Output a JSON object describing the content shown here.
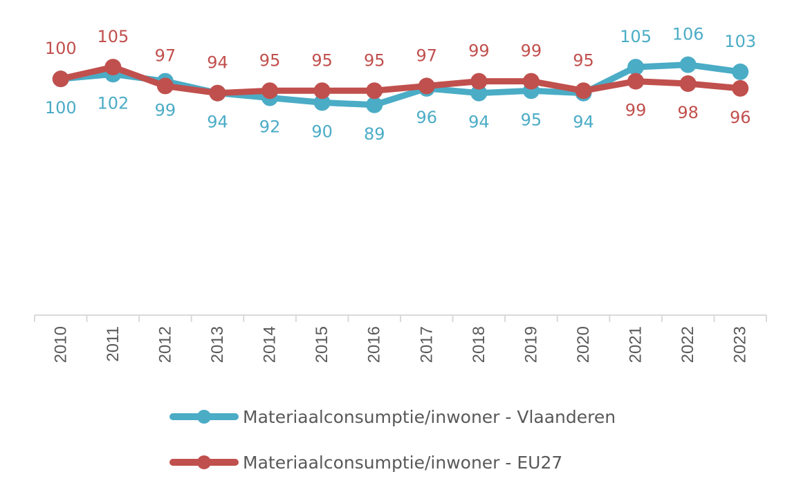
{
  "chart_data": {
    "type": "line",
    "title": "",
    "xlabel": "",
    "ylabel": "",
    "ylim": [
      0,
      110
    ],
    "grid": false,
    "legend_position": "bottom",
    "categories": [
      "2010",
      "2011",
      "2012",
      "2013",
      "2014",
      "2015",
      "2016",
      "2017",
      "2018",
      "2019",
      "2020",
      "2021",
      "2022",
      "2023"
    ],
    "series": [
      {
        "name": "Materiaalconsumptie/inwoner - Vlaanderen",
        "color": "#4BACC6",
        "label_position": "below-until-2020-then-above",
        "values": [
          100,
          102,
          99,
          94,
          92,
          90,
          89,
          96,
          94,
          95,
          94,
          105,
          106,
          103
        ]
      },
      {
        "name": "Materiaalconsumptie/inwoner - EU27",
        "color": "#C0504D",
        "label_position": "above-until-2020-then-below",
        "values": [
          100,
          105,
          97,
          94,
          95,
          95,
          95,
          97,
          99,
          99,
          95,
          99,
          98,
          96
        ]
      }
    ]
  }
}
